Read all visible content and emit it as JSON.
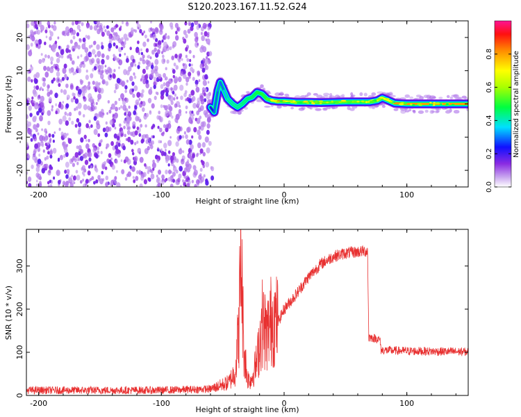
{
  "figure": {
    "title": "S120.2023.167.11.52.G24"
  },
  "chart_data": [
    {
      "type": "heatmap",
      "xlabel": "Height of straight line (km)",
      "ylabel": "Frequency (Hz)",
      "xlim": [
        -210,
        150
      ],
      "ylim": [
        -25,
        25
      ],
      "xticks": [
        -200,
        -100,
        0,
        100
      ],
      "yticks": [
        -20,
        -10,
        0,
        10,
        20
      ],
      "colorbar": {
        "label": "Normalized spectral amplitude",
        "range": [
          0,
          1
        ],
        "ticks": [
          0.0,
          0.2,
          0.4,
          0.6,
          0.8
        ],
        "tick_labels": [
          "0.0",
          "0.2",
          "0.4",
          "0.6",
          "0.8"
        ]
      },
      "noise_region_x": [
        -210,
        -60
      ],
      "signal_trace": [
        {
          "x": -60,
          "y": -1.0,
          "amp": 0.22
        },
        {
          "x": -57,
          "y": -2.5,
          "amp": 0.25
        },
        {
          "x": -54,
          "y": 4.0,
          "amp": 0.32
        },
        {
          "x": -52,
          "y": 6.5,
          "amp": 0.3
        },
        {
          "x": -49,
          "y": 4.0,
          "amp": 0.28
        },
        {
          "x": -46,
          "y": 1.5,
          "amp": 0.4
        },
        {
          "x": -42,
          "y": 0.0,
          "amp": 0.4
        },
        {
          "x": -38,
          "y": -1.0,
          "amp": 0.42
        },
        {
          "x": -34,
          "y": 0.0,
          "amp": 0.42
        },
        {
          "x": -30,
          "y": 1.5,
          "amp": 0.45
        },
        {
          "x": -26,
          "y": 2.0,
          "amp": 0.45
        },
        {
          "x": -22,
          "y": 3.5,
          "amp": 0.48
        },
        {
          "x": -18,
          "y": 3.0,
          "amp": 0.5
        },
        {
          "x": -14,
          "y": 1.5,
          "amp": 0.5
        },
        {
          "x": -10,
          "y": 1.0,
          "amp": 0.55
        },
        {
          "x": -5,
          "y": 0.8,
          "amp": 0.8
        },
        {
          "x": 0,
          "y": 0.8,
          "amp": 0.82
        },
        {
          "x": 10,
          "y": 0.5,
          "amp": 0.55
        },
        {
          "x": 20,
          "y": 0.5,
          "amp": 0.55
        },
        {
          "x": 30,
          "y": 0.4,
          "amp": 0.55
        },
        {
          "x": 40,
          "y": 0.5,
          "amp": 0.55
        },
        {
          "x": 50,
          "y": 0.6,
          "amp": 0.55
        },
        {
          "x": 60,
          "y": 0.6,
          "amp": 0.55
        },
        {
          "x": 70,
          "y": 0.6,
          "amp": 0.56
        },
        {
          "x": 76,
          "y": 1.0,
          "amp": 0.56
        },
        {
          "x": 80,
          "y": 1.8,
          "amp": 0.75
        },
        {
          "x": 84,
          "y": 1.2,
          "amp": 0.6
        },
        {
          "x": 90,
          "y": 0.2,
          "amp": 0.8
        },
        {
          "x": 100,
          "y": 0.0,
          "amp": 0.82
        },
        {
          "x": 110,
          "y": 0.0,
          "amp": 0.8
        },
        {
          "x": 125,
          "y": 0.0,
          "amp": 0.8
        },
        {
          "x": 140,
          "y": 0.0,
          "amp": 0.8
        },
        {
          "x": 150,
          "y": 0.0,
          "amp": 0.8
        }
      ]
    },
    {
      "type": "line",
      "xlabel": "Height of straight line (km)",
      "ylabel": "SNR (10 * v/v)",
      "xlim": [
        -210,
        150
      ],
      "ylim": [
        0,
        385
      ],
      "xticks": [
        -200,
        -100,
        0,
        100
      ],
      "yticks": [
        0,
        100,
        200,
        300
      ],
      "series": [
        {
          "color": "#e83030",
          "trend": [
            {
              "x": -210,
              "y": 12
            },
            {
              "x": -150,
              "y": 12
            },
            {
              "x": -100,
              "y": 12
            },
            {
              "x": -60,
              "y": 15
            },
            {
              "x": -45,
              "y": 30
            },
            {
              "x": -40,
              "y": 55
            },
            {
              "x": -37,
              "y": 150
            },
            {
              "x": -35,
              "y": 330
            },
            {
              "x": -33,
              "y": 120
            },
            {
              "x": -30,
              "y": 40
            },
            {
              "x": -27,
              "y": 35
            },
            {
              "x": -22,
              "y": 80
            },
            {
              "x": -18,
              "y": 170
            },
            {
              "x": -14,
              "y": 140
            },
            {
              "x": -10,
              "y": 180
            },
            {
              "x": -5,
              "y": 170
            },
            {
              "x": 0,
              "y": 200
            },
            {
              "x": 10,
              "y": 235
            },
            {
              "x": 20,
              "y": 275
            },
            {
              "x": 30,
              "y": 305
            },
            {
              "x": 40,
              "y": 322
            },
            {
              "x": 50,
              "y": 330
            },
            {
              "x": 60,
              "y": 333
            },
            {
              "x": 68,
              "y": 335
            },
            {
              "x": 69,
              "y": 135
            },
            {
              "x": 78,
              "y": 130
            },
            {
              "x": 79,
              "y": 105
            },
            {
              "x": 100,
              "y": 103
            },
            {
              "x": 125,
              "y": 102
            },
            {
              "x": 150,
              "y": 101
            }
          ]
        }
      ]
    }
  ]
}
